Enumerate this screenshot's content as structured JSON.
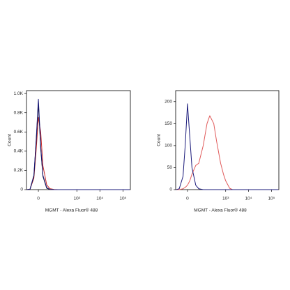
{
  "chart_data": [
    {
      "type": "line",
      "x_label": "MGMT - Alexa Fluor® 488",
      "y_label": "Count",
      "xscale": "biexponential",
      "xlim": [
        -64,
        210000
      ],
      "ylim": [
        0,
        1030
      ],
      "xticks": [
        0,
        {
          "value": 1000,
          "label": "10³"
        },
        {
          "value": 10000,
          "label": "10⁴"
        },
        {
          "value": 100000,
          "label": "10⁵"
        }
      ],
      "yticks": [
        0,
        {
          "value": 200,
          "label": "0.2K"
        },
        {
          "value": 400,
          "label": "0.4K"
        },
        {
          "value": 600,
          "label": "0.6K"
        },
        {
          "value": 800,
          "label": "0.8K"
        },
        {
          "value": 1000,
          "label": "1.0K"
        }
      ],
      "x": [
        -60,
        -40,
        -20,
        -10,
        0,
        10,
        20,
        40,
        60,
        100,
        150,
        200,
        300,
        400,
        600,
        800,
        1000,
        1500,
        2000,
        3000,
        5000,
        10000,
        100000,
        200000
      ],
      "series": [
        {
          "color": "#c62828",
          "values": [
            0,
            5,
            120,
            400,
            750,
            600,
            250,
            50,
            10,
            2,
            0,
            0,
            0,
            0,
            0,
            0,
            0,
            0,
            0,
            0,
            0,
            0,
            0,
            0
          ]
        },
        {
          "color": "#000000",
          "values": [
            0,
            5,
            140,
            480,
            900,
            430,
            140,
            15,
            2,
            0,
            0,
            0,
            0,
            0,
            0,
            0,
            0,
            0,
            0,
            0,
            0,
            0,
            0,
            0
          ]
        },
        {
          "color": "#1a1a7a",
          "values": [
            0,
            5,
            150,
            500,
            940,
            450,
            150,
            20,
            3,
            0,
            0,
            0,
            0,
            0,
            0,
            0,
            0,
            0,
            0,
            0,
            0,
            0,
            0,
            0
          ]
        }
      ]
    },
    {
      "type": "line",
      "x_label": "MGMT - Alexa Fluor® 488",
      "y_label": "Count",
      "xscale": "biexponential",
      "xlim": [
        -64,
        210000
      ],
      "ylim": [
        0,
        225
      ],
      "xticks": [
        0,
        {
          "value": 1000,
          "label": "10³"
        },
        {
          "value": 10000,
          "label": "10⁴"
        },
        {
          "value": 100000,
          "label": "10⁵"
        }
      ],
      "yticks": [
        0,
        50,
        100,
        150,
        200
      ],
      "x": [
        -60,
        -40,
        -20,
        -10,
        0,
        10,
        20,
        40,
        60,
        100,
        150,
        200,
        300,
        400,
        600,
        800,
        1000,
        1500,
        2000,
        3000,
        5000,
        10000,
        100000,
        200000
      ],
      "series": [
        {
          "color": "#e05a5a",
          "values": [
            0,
            0,
            2,
            5,
            10,
            20,
            35,
            55,
            60,
            100,
            150,
            168,
            150,
            110,
            60,
            35,
            20,
            3,
            0,
            0,
            0,
            0,
            0,
            0
          ]
        },
        {
          "color": "#1a1a7a",
          "values": [
            0,
            2,
            30,
            100,
            195,
            120,
            50,
            10,
            2,
            0,
            0,
            0,
            0,
            0,
            0,
            0,
            0,
            0,
            0,
            0,
            0,
            0,
            0,
            0
          ]
        }
      ]
    }
  ]
}
